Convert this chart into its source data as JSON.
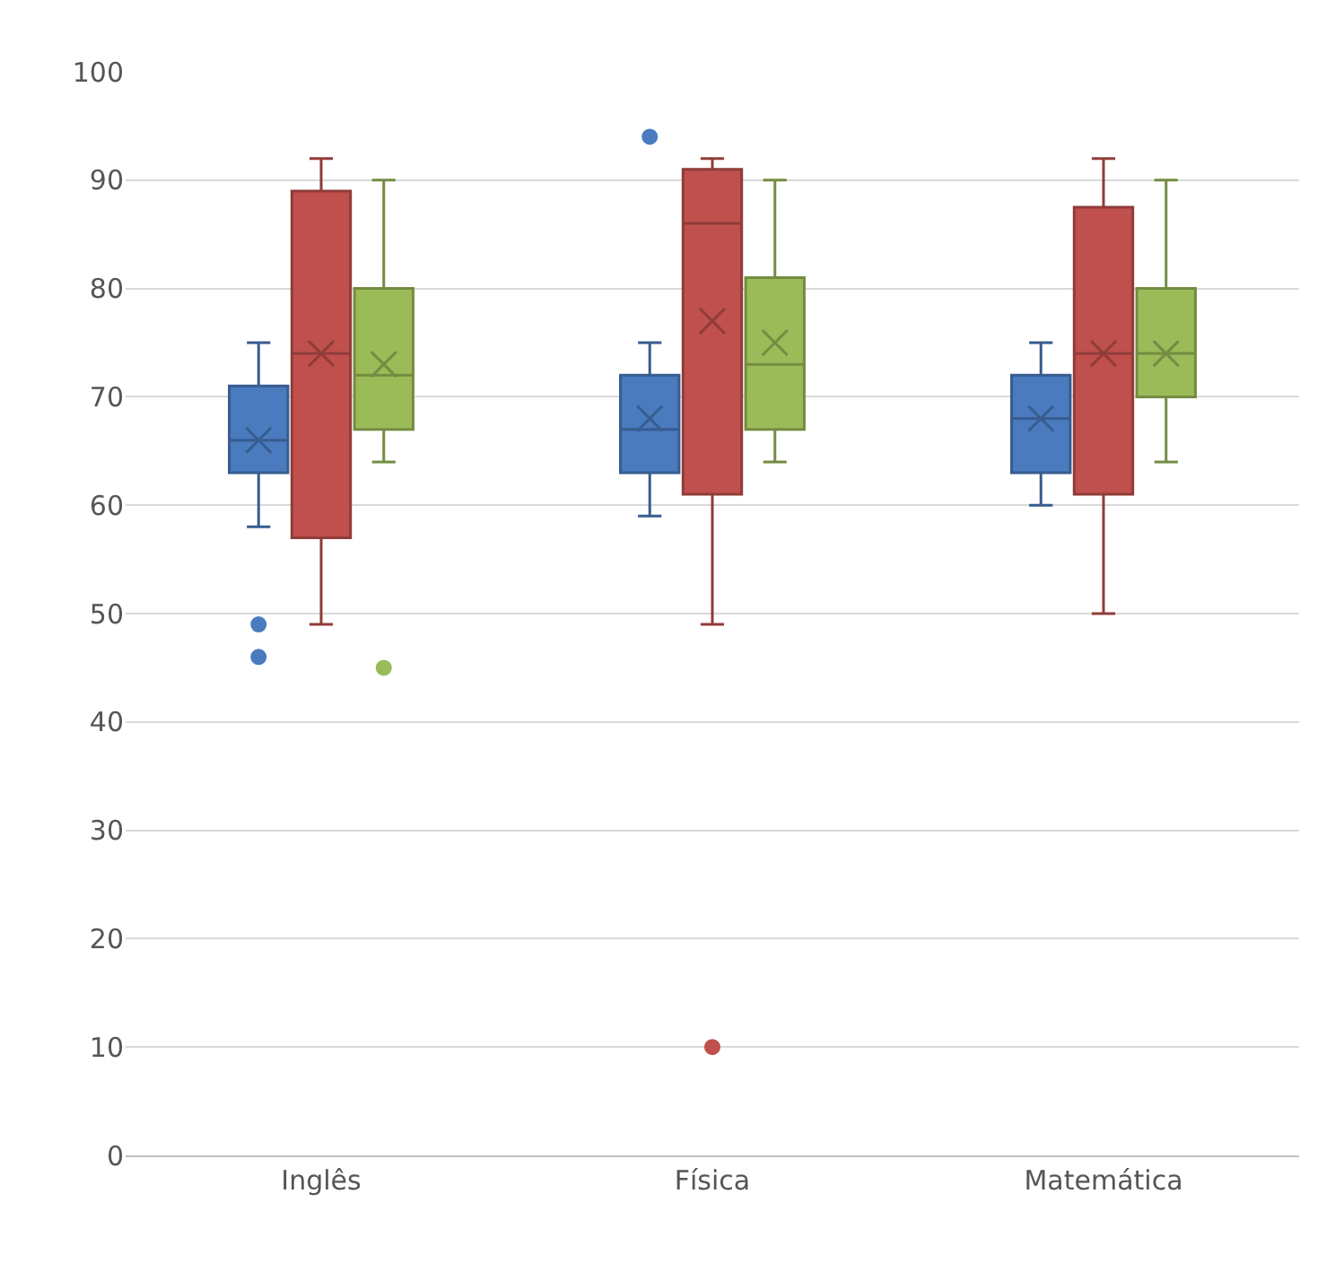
{
  "chart_data": {
    "type": "box",
    "categories": [
      "Inglês",
      "Física",
      "Matemática"
    ],
    "ylim": [
      0,
      100
    ],
    "yticks": [
      0,
      10,
      20,
      30,
      40,
      50,
      60,
      70,
      80,
      90,
      100
    ],
    "grid": "y",
    "series": [
      {
        "color": "#4a7bbf",
        "boxes": [
          {
            "low": 58,
            "q1": 63,
            "median": 66,
            "q3": 71,
            "high": 75,
            "mean": 66,
            "outliers": [
              49,
              46
            ]
          },
          {
            "low": 59,
            "q1": 63,
            "median": 67,
            "q3": 72,
            "high": 75,
            "mean": 68,
            "outliers": [
              94
            ]
          },
          {
            "low": 60,
            "q1": 63,
            "median": 68,
            "q3": 72,
            "high": 75,
            "mean": 68
          }
        ]
      },
      {
        "color": "#c0504d",
        "boxes": [
          {
            "low": 49,
            "q1": 57,
            "median": 74,
            "q3": 89,
            "high": 92,
            "mean": 74
          },
          {
            "low": 49,
            "q1": 61,
            "median": 86,
            "q3": 91,
            "high": 92,
            "mean": 77,
            "outliers": [
              10
            ]
          },
          {
            "low": 50,
            "q1": 61,
            "median": 74,
            "q3": 87.5,
            "high": 92,
            "mean": 74
          }
        ]
      },
      {
        "color": "#9bbb59",
        "boxes": [
          {
            "low": 64,
            "q1": 67,
            "median": 72,
            "q3": 80,
            "high": 90,
            "mean": 73,
            "outliers": [
              45
            ]
          },
          {
            "low": 64,
            "q1": 67,
            "median": 73,
            "q3": 81,
            "high": 90,
            "mean": 75
          },
          {
            "low": 64,
            "q1": 70,
            "median": 74,
            "q3": 80,
            "high": 90,
            "mean": 74
          }
        ]
      }
    ]
  }
}
